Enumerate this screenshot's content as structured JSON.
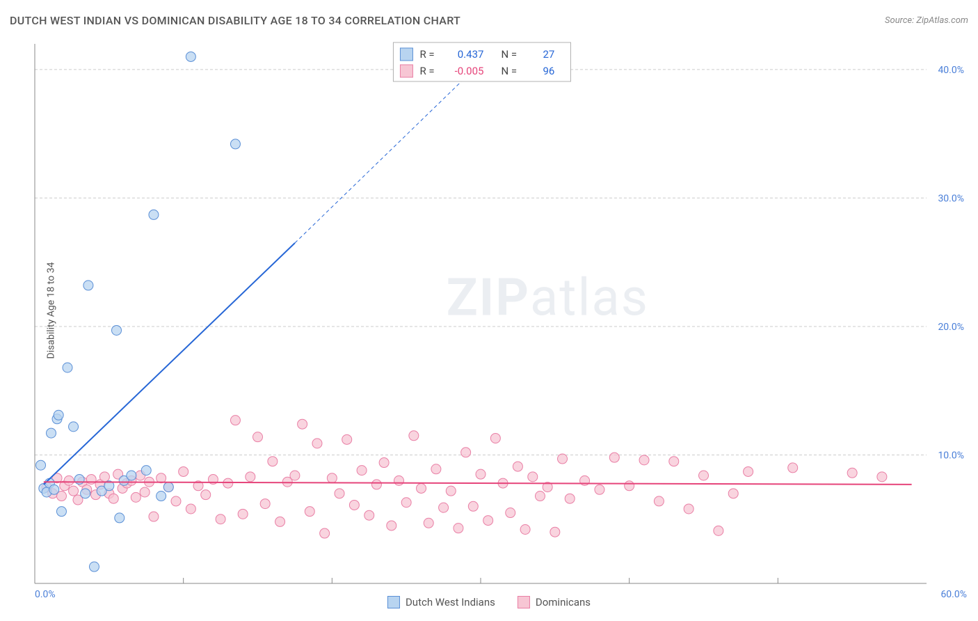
{
  "title": "DUTCH WEST INDIAN VS DOMINICAN DISABILITY AGE 18 TO 34 CORRELATION CHART",
  "source": "Source: ZipAtlas.com",
  "ylabel": "Disability Age 18 to 34",
  "watermark": {
    "strong": "ZIP",
    "rest": "atlas"
  },
  "chart": {
    "type": "scatter",
    "background_color": "#ffffff",
    "grid_color": "#cccccc",
    "grid_dash": "4,3",
    "xlim": [
      0,
      60
    ],
    "ylim": [
      0,
      42
    ],
    "xtick_step": 10,
    "ytick_labels": [
      {
        "y": 10,
        "label": "10.0%"
      },
      {
        "y": 20,
        "label": "20.0%"
      },
      {
        "y": 30,
        "label": "30.0%"
      },
      {
        "y": 40,
        "label": "40.0%"
      }
    ],
    "x_corner_min": "0.0%",
    "x_corner_max": "60.0%",
    "tick_color": "#4a7fd8",
    "axis_color": "#888888",
    "series": [
      {
        "name": "Dutch West Indians",
        "marker_fill": "#b8d4f0",
        "marker_stroke": "#5a8fd6",
        "marker_opacity": 0.75,
        "marker_radius": 7,
        "trend": {
          "from": [
            0.6,
            7.7
          ],
          "to": [
            17.5,
            26.5
          ],
          "color": "#2666d6",
          "width": 2,
          "dash": "none"
        },
        "trend_ext": {
          "from": [
            17.5,
            26.5
          ],
          "to": [
            30.6,
            41.2
          ],
          "color": "#2666d6",
          "width": 1,
          "dash": "5,4"
        },
        "points": [
          [
            0.4,
            9.2
          ],
          [
            0.6,
            7.4
          ],
          [
            0.8,
            7.1
          ],
          [
            1.0,
            7.8
          ],
          [
            1.1,
            11.7
          ],
          [
            1.3,
            7.3
          ],
          [
            1.5,
            12.8
          ],
          [
            1.6,
            13.1
          ],
          [
            1.8,
            5.6
          ],
          [
            2.2,
            16.8
          ],
          [
            2.6,
            12.2
          ],
          [
            3.0,
            8.1
          ],
          [
            3.4,
            7.0
          ],
          [
            3.6,
            23.2
          ],
          [
            4.0,
            1.3
          ],
          [
            4.5,
            7.2
          ],
          [
            5.0,
            7.6
          ],
          [
            5.5,
            19.7
          ],
          [
            5.7,
            5.1
          ],
          [
            6.0,
            8.0
          ],
          [
            6.5,
            8.4
          ],
          [
            7.5,
            8.8
          ],
          [
            8.0,
            28.7
          ],
          [
            8.5,
            6.8
          ],
          [
            9.0,
            7.5
          ],
          [
            10.5,
            41.0
          ],
          [
            13.5,
            34.2
          ]
        ]
      },
      {
        "name": "Dominicans",
        "marker_fill": "#f7c6d4",
        "marker_stroke": "#e97fa5",
        "marker_opacity": 0.75,
        "marker_radius": 7,
        "trend": {
          "from": [
            0.6,
            7.9
          ],
          "to": [
            59,
            7.7
          ],
          "color": "#e6447a",
          "width": 2,
          "dash": "none"
        },
        "points": [
          [
            0.8,
            7.5
          ],
          [
            1.2,
            7.0
          ],
          [
            1.5,
            8.2
          ],
          [
            1.8,
            6.8
          ],
          [
            2.0,
            7.6
          ],
          [
            2.3,
            8.0
          ],
          [
            2.6,
            7.2
          ],
          [
            2.9,
            6.5
          ],
          [
            3.2,
            7.9
          ],
          [
            3.5,
            7.3
          ],
          [
            3.8,
            8.1
          ],
          [
            4.1,
            6.9
          ],
          [
            4.4,
            7.7
          ],
          [
            4.7,
            8.3
          ],
          [
            5.0,
            7.0
          ],
          [
            5.3,
            6.6
          ],
          [
            5.6,
            8.5
          ],
          [
            5.9,
            7.4
          ],
          [
            6.2,
            7.8
          ],
          [
            6.5,
            8.0
          ],
          [
            6.8,
            6.7
          ],
          [
            7.1,
            8.4
          ],
          [
            7.4,
            7.1
          ],
          [
            7.7,
            7.9
          ],
          [
            8.0,
            5.2
          ],
          [
            8.5,
            8.2
          ],
          [
            9.0,
            7.5
          ],
          [
            9.5,
            6.4
          ],
          [
            10.0,
            8.7
          ],
          [
            10.5,
            5.8
          ],
          [
            11.0,
            7.6
          ],
          [
            11.5,
            6.9
          ],
          [
            12.0,
            8.1
          ],
          [
            12.5,
            5.0
          ],
          [
            13.0,
            7.8
          ],
          [
            13.5,
            12.7
          ],
          [
            14.0,
            5.4
          ],
          [
            14.5,
            8.3
          ],
          [
            15.0,
            11.4
          ],
          [
            15.5,
            6.2
          ],
          [
            16.0,
            9.5
          ],
          [
            16.5,
            4.8
          ],
          [
            17.0,
            7.9
          ],
          [
            17.5,
            8.4
          ],
          [
            18.0,
            12.4
          ],
          [
            18.5,
            5.6
          ],
          [
            19.0,
            10.9
          ],
          [
            19.5,
            3.9
          ],
          [
            20.0,
            8.2
          ],
          [
            20.5,
            7.0
          ],
          [
            21.0,
            11.2
          ],
          [
            21.5,
            6.1
          ],
          [
            22.0,
            8.8
          ],
          [
            22.5,
            5.3
          ],
          [
            23.0,
            7.7
          ],
          [
            23.5,
            9.4
          ],
          [
            24.0,
            4.5
          ],
          [
            24.5,
            8.0
          ],
          [
            25.0,
            6.3
          ],
          [
            25.5,
            11.5
          ],
          [
            26.0,
            7.4
          ],
          [
            26.5,
            4.7
          ],
          [
            27.0,
            8.9
          ],
          [
            27.5,
            5.9
          ],
          [
            28.0,
            7.2
          ],
          [
            28.5,
            4.3
          ],
          [
            29.0,
            10.2
          ],
          [
            29.5,
            6.0
          ],
          [
            30.0,
            8.5
          ],
          [
            30.5,
            4.9
          ],
          [
            31.0,
            11.3
          ],
          [
            31.5,
            7.8
          ],
          [
            32.0,
            5.5
          ],
          [
            32.5,
            9.1
          ],
          [
            33.0,
            4.2
          ],
          [
            33.5,
            8.3
          ],
          [
            34.0,
            6.8
          ],
          [
            34.5,
            7.5
          ],
          [
            35.0,
            4.0
          ],
          [
            35.5,
            9.7
          ],
          [
            36.0,
            6.6
          ],
          [
            37.0,
            8.0
          ],
          [
            38.0,
            7.3
          ],
          [
            39.0,
            9.8
          ],
          [
            40.0,
            7.6
          ],
          [
            41.0,
            9.6
          ],
          [
            42.0,
            6.4
          ],
          [
            43.0,
            9.5
          ],
          [
            44.0,
            5.8
          ],
          [
            45.0,
            8.4
          ],
          [
            46.0,
            4.1
          ],
          [
            47.0,
            7.0
          ],
          [
            48.0,
            8.7
          ],
          [
            51.0,
            9.0
          ],
          [
            55.0,
            8.6
          ],
          [
            57.0,
            8.3
          ]
        ]
      }
    ],
    "top_legend": {
      "box_stroke": "#b0b0b0",
      "rows": [
        {
          "swatch_fill": "#b8d4f0",
          "swatch_stroke": "#5a8fd6",
          "r_label": "R =",
          "r_val": "0.437",
          "r_color": "#2666d6",
          "n_label": "N =",
          "n_val": "27",
          "n_color": "#2666d6"
        },
        {
          "swatch_fill": "#f7c6d4",
          "swatch_stroke": "#e97fa5",
          "r_label": "R =",
          "r_val": "-0.005",
          "r_color": "#e6447a",
          "n_label": "N =",
          "n_val": "96",
          "n_color": "#2666d6"
        }
      ]
    }
  }
}
